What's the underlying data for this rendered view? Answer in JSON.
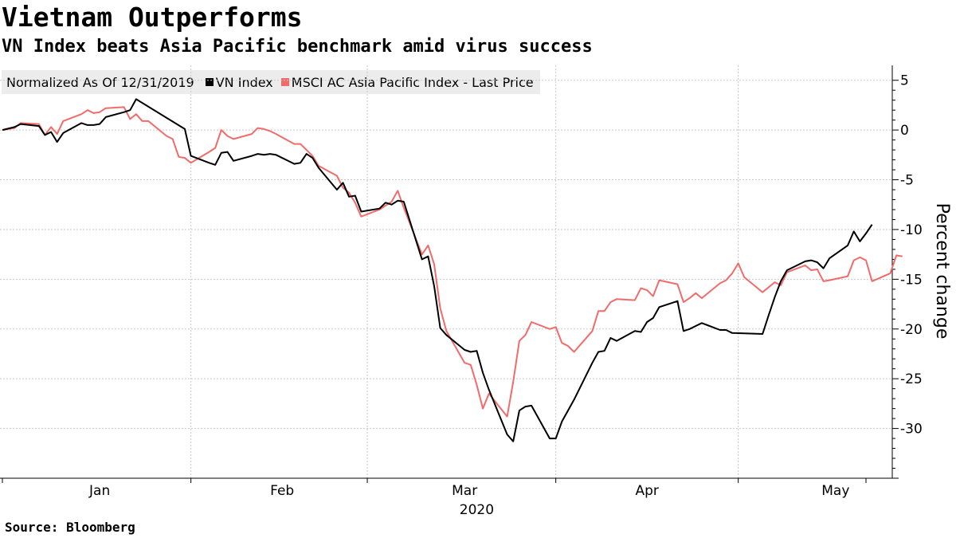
{
  "title": "Vietnam Outperforms",
  "subtitle": "VN Index beats Asia Pacific benchmark amid virus success",
  "source": "Source: Bloomberg",
  "legend": {
    "note": "Normalized As Of 12/31/2019",
    "items": [
      {
        "label": "VN Index",
        "color": "#000000"
      },
      {
        "label": "MSCI AC Asia Pacific Index - Last Price",
        "color": "#f26b6b"
      }
    ]
  },
  "chart_data": {
    "type": "line",
    "title": "Vietnam Outperforms",
    "subtitle": "VN Index beats Asia Pacific benchmark amid virus success",
    "ylabel": "Percent change",
    "xlabel": "2020",
    "ylim": [
      -35,
      6.5
    ],
    "xlim": [
      "2019-12-31",
      "2020-05-21"
    ],
    "y_ticks": [
      5,
      0,
      -5,
      -10,
      -15,
      -20,
      -25,
      -30
    ],
    "y_tick_labels": [
      "5",
      "0",
      "-5",
      "-10",
      "-15",
      "-20",
      "-25",
      "-30"
    ],
    "x_month_labels": [
      {
        "label": "Jan",
        "date": "2020-01-16"
      },
      {
        "label": "Feb",
        "date": "2020-02-15"
      },
      {
        "label": "Mar",
        "date": "2020-03-16"
      },
      {
        "label": "Apr",
        "date": "2020-04-15"
      },
      {
        "label": "May",
        "date": "2020-05-16"
      }
    ],
    "x_year_label": "2020",
    "x_boundaries": [
      "2020-01-31",
      "2020-02-29",
      "2020-03-31",
      "2020-04-30"
    ],
    "grid": true,
    "legend_position": "top-left",
    "series": [
      {
        "name": "VN Index",
        "color": "#000000",
        "points": [
          [
            "2019-12-31",
            0.0
          ],
          [
            "2020-01-02",
            0.3
          ],
          [
            "2020-01-03",
            0.6
          ],
          [
            "2020-01-06",
            0.4
          ],
          [
            "2020-01-07",
            -0.5
          ],
          [
            "2020-01-08",
            -0.2
          ],
          [
            "2020-01-09",
            -1.2
          ],
          [
            "2020-01-10",
            -0.3
          ],
          [
            "2020-01-13",
            0.7
          ],
          [
            "2020-01-14",
            0.5
          ],
          [
            "2020-01-15",
            0.5
          ],
          [
            "2020-01-16",
            0.6
          ],
          [
            "2020-01-17",
            1.3
          ],
          [
            "2020-01-20",
            1.8
          ],
          [
            "2020-01-21",
            2.0
          ],
          [
            "2020-01-22",
            3.1
          ],
          [
            "2020-01-30",
            0.1
          ],
          [
            "2020-01-31",
            -2.6
          ],
          [
            "2020-02-03",
            -3.3
          ],
          [
            "2020-02-04",
            -3.5
          ],
          [
            "2020-02-05",
            -2.3
          ],
          [
            "2020-02-06",
            -2.2
          ],
          [
            "2020-02-07",
            -3.1
          ],
          [
            "2020-02-10",
            -2.6
          ],
          [
            "2020-02-11",
            -2.4
          ],
          [
            "2020-02-12",
            -2.5
          ],
          [
            "2020-02-13",
            -2.4
          ],
          [
            "2020-02-14",
            -2.5
          ],
          [
            "2020-02-17",
            -3.4
          ],
          [
            "2020-02-18",
            -3.3
          ],
          [
            "2020-02-19",
            -2.4
          ],
          [
            "2020-02-20",
            -2.8
          ],
          [
            "2020-02-21",
            -3.8
          ],
          [
            "2020-02-24",
            -6.0
          ],
          [
            "2020-02-25",
            -5.3
          ],
          [
            "2020-02-26",
            -6.7
          ],
          [
            "2020-02-27",
            -6.6
          ],
          [
            "2020-02-28",
            -8.2
          ],
          [
            "2020-03-02",
            -7.9
          ],
          [
            "2020-03-03",
            -7.3
          ],
          [
            "2020-03-04",
            -7.5
          ],
          [
            "2020-03-05",
            -7.1
          ],
          [
            "2020-03-06",
            -7.2
          ],
          [
            "2020-03-09",
            -13.0
          ],
          [
            "2020-03-10",
            -12.7
          ],
          [
            "2020-03-11",
            -15.7
          ],
          [
            "2020-03-12",
            -19.9
          ],
          [
            "2020-03-13",
            -20.6
          ],
          [
            "2020-03-16",
            -22.1
          ],
          [
            "2020-03-17",
            -22.3
          ],
          [
            "2020-03-18",
            -22.2
          ],
          [
            "2020-03-19",
            -24.4
          ],
          [
            "2020-03-20",
            -26.1
          ],
          [
            "2020-03-23",
            -30.6
          ],
          [
            "2020-03-24",
            -31.3
          ],
          [
            "2020-03-25",
            -28.2
          ],
          [
            "2020-03-26",
            -27.8
          ],
          [
            "2020-03-27",
            -27.7
          ],
          [
            "2020-03-30",
            -31.0
          ],
          [
            "2020-03-31",
            -31.0
          ],
          [
            "2020-04-01",
            -29.3
          ],
          [
            "2020-04-03",
            -27.1
          ],
          [
            "2020-04-06",
            -23.4
          ],
          [
            "2020-04-07",
            -22.3
          ],
          [
            "2020-04-08",
            -22.2
          ],
          [
            "2020-04-09",
            -20.9
          ],
          [
            "2020-04-10",
            -21.2
          ],
          [
            "2020-04-13",
            -20.2
          ],
          [
            "2020-04-14",
            -20.3
          ],
          [
            "2020-04-15",
            -19.3
          ],
          [
            "2020-04-16",
            -18.9
          ],
          [
            "2020-04-17",
            -17.8
          ],
          [
            "2020-04-20",
            -17.2
          ],
          [
            "2020-04-21",
            -20.2
          ],
          [
            "2020-04-22",
            -20.0
          ],
          [
            "2020-04-23",
            -19.7
          ],
          [
            "2020-04-24",
            -19.4
          ],
          [
            "2020-04-27",
            -20.1
          ],
          [
            "2020-04-28",
            -20.1
          ],
          [
            "2020-04-29",
            -20.4
          ],
          [
            "2020-05-04",
            -20.5
          ],
          [
            "2020-05-05",
            -18.6
          ],
          [
            "2020-05-06",
            -16.8
          ],
          [
            "2020-05-07",
            -15.2
          ],
          [
            "2020-05-08",
            -14.1
          ],
          [
            "2020-05-11",
            -13.2
          ],
          [
            "2020-05-12",
            -13.1
          ],
          [
            "2020-05-13",
            -13.3
          ],
          [
            "2020-05-14",
            -13.9
          ],
          [
            "2020-05-15",
            -12.9
          ],
          [
            "2020-05-18",
            -11.6
          ],
          [
            "2020-05-19",
            -10.2
          ],
          [
            "2020-05-20",
            -11.2
          ],
          [
            "2020-05-21",
            -10.4
          ],
          [
            "2020-05-22",
            -9.5
          ]
        ]
      },
      {
        "name": "MSCI AC Asia Pacific Index - Last Price",
        "color": "#f26b6b",
        "points": [
          [
            "2019-12-31",
            0.0
          ],
          [
            "2020-01-02",
            0.2
          ],
          [
            "2020-01-03",
            0.7
          ],
          [
            "2020-01-06",
            0.6
          ],
          [
            "2020-01-07",
            -0.5
          ],
          [
            "2020-01-08",
            0.3
          ],
          [
            "2020-01-09",
            -0.4
          ],
          [
            "2020-01-10",
            0.9
          ],
          [
            "2020-01-13",
            1.6
          ],
          [
            "2020-01-14",
            2.0
          ],
          [
            "2020-01-15",
            1.7
          ],
          [
            "2020-01-16",
            1.8
          ],
          [
            "2020-01-17",
            2.2
          ],
          [
            "2020-01-20",
            2.3
          ],
          [
            "2020-01-21",
            1.1
          ],
          [
            "2020-01-22",
            1.6
          ],
          [
            "2020-01-23",
            0.9
          ],
          [
            "2020-01-24",
            0.9
          ],
          [
            "2020-01-27",
            -0.6
          ],
          [
            "2020-01-28",
            -0.9
          ],
          [
            "2020-01-29",
            -2.7
          ],
          [
            "2020-01-30",
            -2.8
          ],
          [
            "2020-01-31",
            -3.3
          ],
          [
            "2020-02-03",
            -2.2
          ],
          [
            "2020-02-04",
            -1.8
          ],
          [
            "2020-02-05",
            0.0
          ],
          [
            "2020-02-06",
            -0.6
          ],
          [
            "2020-02-07",
            -0.9
          ],
          [
            "2020-02-10",
            -0.4
          ],
          [
            "2020-02-11",
            0.2
          ],
          [
            "2020-02-12",
            0.1
          ],
          [
            "2020-02-13",
            -0.1
          ],
          [
            "2020-02-14",
            -0.4
          ],
          [
            "2020-02-17",
            -1.4
          ],
          [
            "2020-02-18",
            -1.4
          ],
          [
            "2020-02-19",
            -2.0
          ],
          [
            "2020-02-20",
            -2.6
          ],
          [
            "2020-02-21",
            -3.6
          ],
          [
            "2020-02-24",
            -4.6
          ],
          [
            "2020-02-25",
            -5.8
          ],
          [
            "2020-02-26",
            -6.3
          ],
          [
            "2020-02-27",
            -7.3
          ],
          [
            "2020-02-28",
            -8.7
          ],
          [
            "2020-03-02",
            -8.0
          ],
          [
            "2020-03-03",
            -7.6
          ],
          [
            "2020-03-04",
            -7.2
          ],
          [
            "2020-03-05",
            -6.1
          ],
          [
            "2020-03-06",
            -7.8
          ],
          [
            "2020-03-09",
            -12.5
          ],
          [
            "2020-03-10",
            -11.6
          ],
          [
            "2020-03-11",
            -13.5
          ],
          [
            "2020-03-12",
            -17.9
          ],
          [
            "2020-03-13",
            -20.2
          ],
          [
            "2020-03-16",
            -23.4
          ],
          [
            "2020-03-17",
            -23.6
          ],
          [
            "2020-03-18",
            -25.6
          ],
          [
            "2020-03-19",
            -28.0
          ],
          [
            "2020-03-20",
            -26.5
          ],
          [
            "2020-03-23",
            -28.8
          ],
          [
            "2020-03-24",
            -25.3
          ],
          [
            "2020-03-25",
            -21.2
          ],
          [
            "2020-03-26",
            -20.6
          ],
          [
            "2020-03-27",
            -19.3
          ],
          [
            "2020-03-30",
            -20.0
          ],
          [
            "2020-03-31",
            -19.8
          ],
          [
            "2020-04-01",
            -21.4
          ],
          [
            "2020-04-02",
            -21.7
          ],
          [
            "2020-04-03",
            -22.3
          ],
          [
            "2020-04-06",
            -20.2
          ],
          [
            "2020-04-07",
            -18.2
          ],
          [
            "2020-04-08",
            -18.2
          ],
          [
            "2020-04-09",
            -17.3
          ],
          [
            "2020-04-10",
            -17.0
          ],
          [
            "2020-04-13",
            -17.1
          ],
          [
            "2020-04-14",
            -15.9
          ],
          [
            "2020-04-15",
            -16.1
          ],
          [
            "2020-04-16",
            -16.7
          ],
          [
            "2020-04-17",
            -15.1
          ],
          [
            "2020-04-20",
            -15.5
          ],
          [
            "2020-04-21",
            -17.3
          ],
          [
            "2020-04-22",
            -16.9
          ],
          [
            "2020-04-23",
            -16.4
          ],
          [
            "2020-04-24",
            -16.9
          ],
          [
            "2020-04-27",
            -15.4
          ],
          [
            "2020-04-28",
            -15.1
          ],
          [
            "2020-04-29",
            -14.4
          ],
          [
            "2020-04-30",
            -13.4
          ],
          [
            "2020-05-01",
            -14.8
          ],
          [
            "2020-05-04",
            -16.3
          ],
          [
            "2020-05-05",
            -15.8
          ],
          [
            "2020-05-06",
            -15.3
          ],
          [
            "2020-05-07",
            -15.6
          ],
          [
            "2020-05-08",
            -14.3
          ],
          [
            "2020-05-11",
            -13.6
          ],
          [
            "2020-05-12",
            -14.1
          ],
          [
            "2020-05-13",
            -14.0
          ],
          [
            "2020-05-14",
            -15.2
          ],
          [
            "2020-05-15",
            -15.1
          ],
          [
            "2020-05-18",
            -14.7
          ],
          [
            "2020-05-19",
            -13.1
          ],
          [
            "2020-05-20",
            -12.8
          ],
          [
            "2020-05-21",
            -13.1
          ],
          [
            "2020-05-22",
            -15.2
          ],
          [
            "2020-05-25",
            -14.4
          ],
          [
            "2020-05-26",
            -12.6
          ],
          [
            "2020-05-27",
            -12.7
          ]
        ]
      }
    ]
  }
}
